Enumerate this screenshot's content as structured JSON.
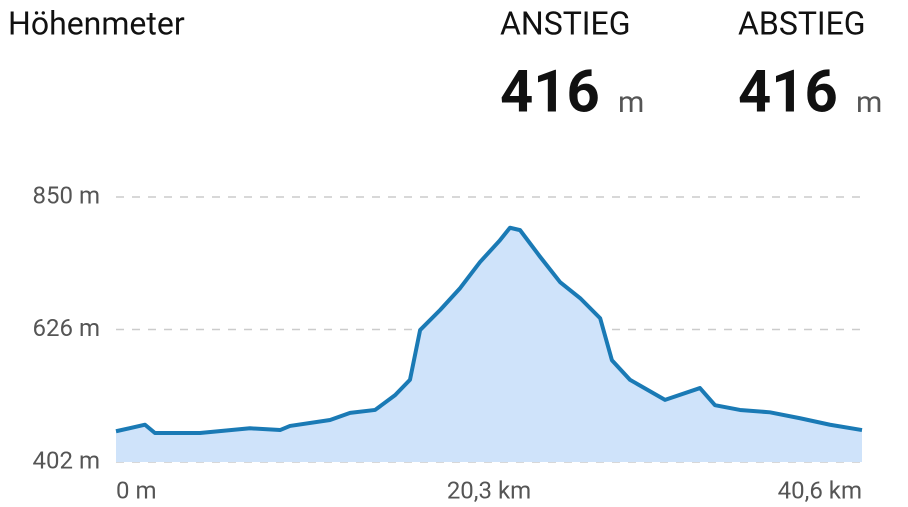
{
  "chart_data": {
    "type": "area",
    "title": "Höhenmeter",
    "stats": [
      {
        "label": "ANSTIEG",
        "value": "416",
        "unit": "m"
      },
      {
        "label": "ABSTIEG",
        "value": "416",
        "unit": "m"
      }
    ],
    "x": [
      0,
      1.58,
      2.12,
      4.57,
      7.29,
      8.93,
      9.47,
      11.65,
      12.74,
      14.1,
      15.19,
      16.0,
      16.55,
      17.64,
      18.73,
      19.81,
      20.9,
      21.44,
      21.99,
      23.08,
      24.17,
      25.26,
      26.35,
      26.99,
      27.97,
      29.88,
      31.78,
      32.6,
      33.96,
      35.59,
      37.23,
      38.86,
      40.6
    ],
    "values": [
      454,
      465,
      451,
      451,
      459,
      456,
      463,
      473,
      485,
      490,
      515,
      541,
      625,
      659,
      696,
      740,
      777,
      798,
      794,
      749,
      706,
      679,
      645,
      574,
      541,
      507,
      527,
      498,
      490,
      486,
      476,
      465,
      456
    ],
    "color": "#1a7ab5",
    "fill": "#cfe3fa",
    "xlim": [
      0,
      40.6
    ],
    "xticks": [
      {
        "value": 0,
        "label": "0 m"
      },
      {
        "value": 20.3,
        "label": "20,3 km"
      },
      {
        "value": 40.6,
        "label": "40,6 km"
      }
    ],
    "ylim": [
      402,
      850
    ],
    "yticks": [
      {
        "value": 402,
        "label": "402 m"
      },
      {
        "value": 626,
        "label": "626 m"
      },
      {
        "value": 850,
        "label": "850 m"
      }
    ],
    "grid": true
  }
}
